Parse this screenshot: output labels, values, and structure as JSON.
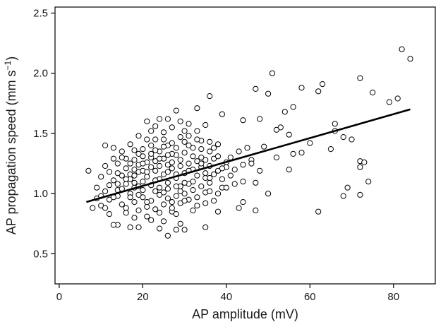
{
  "chart_data": {
    "type": "scatter",
    "title": "",
    "xlabel": "AP amplitude (mV)",
    "ylabel_main": "AP propagation speed (mm s",
    "ylabel_sup": "−1",
    "ylabel_close": ")",
    "xlim": [
      -1,
      90
    ],
    "ylim": [
      0.25,
      2.55
    ],
    "x_ticks": [
      0,
      20,
      40,
      60,
      80
    ],
    "x_tick_labels": [
      "0",
      "20",
      "40",
      "60",
      "80"
    ],
    "y_ticks": [
      0.5,
      1.0,
      1.5,
      2.0,
      2.5
    ],
    "y_tick_labels": [
      "0.5",
      "1.0",
      "1.5",
      "2.0",
      "2.5"
    ],
    "grid": false,
    "legend": "none",
    "trendline": {
      "x": [
        6.5,
        84
      ],
      "y": [
        0.93,
        1.7
      ]
    },
    "series": [
      {
        "points": [
          [
            82,
            2.2
          ],
          [
            84,
            2.12
          ],
          [
            51,
            2.0
          ],
          [
            72,
            1.96
          ],
          [
            63,
            1.91
          ],
          [
            47,
            1.87
          ],
          [
            58,
            1.88
          ],
          [
            62,
            1.85
          ],
          [
            36,
            1.81
          ],
          [
            75,
            1.84
          ],
          [
            81,
            1.79
          ],
          [
            79,
            1.76
          ],
          [
            33,
            1.71
          ],
          [
            50,
            1.83
          ],
          [
            56,
            1.72
          ],
          [
            54,
            1.68
          ],
          [
            28,
            1.69
          ],
          [
            39,
            1.66
          ],
          [
            44,
            1.61
          ],
          [
            48,
            1.62
          ],
          [
            66,
            1.58
          ],
          [
            66,
            1.52
          ],
          [
            53,
            1.55
          ],
          [
            52,
            1.53
          ],
          [
            68,
            1.47
          ],
          [
            70,
            1.45
          ],
          [
            55,
            1.49
          ],
          [
            60,
            1.42
          ],
          [
            49,
            1.39
          ],
          [
            65,
            1.37
          ],
          [
            58,
            1.34
          ],
          [
            56,
            1.33
          ],
          [
            52,
            1.3
          ],
          [
            46,
            1.28
          ],
          [
            44,
            1.24
          ],
          [
            72,
            1.27
          ],
          [
            73,
            1.26
          ],
          [
            72,
            1.22
          ],
          [
            55,
            1.2
          ],
          [
            48,
            1.19
          ],
          [
            42,
            1.2
          ],
          [
            38,
            1.19
          ],
          [
            39,
            1.05
          ],
          [
            40,
            1.05
          ],
          [
            47,
            1.09
          ],
          [
            69,
            1.05
          ],
          [
            72,
            0.99
          ],
          [
            74,
            1.1
          ],
          [
            68,
            0.98
          ],
          [
            50,
            1.0
          ],
          [
            44,
            0.93
          ],
          [
            47,
            0.86
          ],
          [
            43,
            0.88
          ],
          [
            62,
            0.85
          ],
          [
            38,
            0.85
          ],
          [
            35,
            0.72
          ],
          [
            26,
            0.65
          ],
          [
            24,
            0.71
          ],
          [
            28,
            0.7
          ],
          [
            14,
            0.74
          ],
          [
            17,
            0.72
          ],
          [
            19,
            0.72
          ],
          [
            30,
            0.7
          ],
          [
            29,
            0.75
          ],
          [
            22,
            0.78
          ],
          [
            13,
            0.74
          ],
          [
            7,
            1.19
          ],
          [
            9,
            0.96
          ],
          [
            10,
            1.14
          ],
          [
            11,
            1.4
          ],
          [
            12,
            0.83
          ],
          [
            13,
            1.38
          ],
          [
            14,
            1.25
          ],
          [
            15,
            1.35
          ],
          [
            16,
            1.29
          ],
          [
            17,
            1.41
          ],
          [
            18,
            1.2
          ],
          [
            19,
            1.48
          ],
          [
            20,
            1.37
          ],
          [
            21,
            1.6
          ],
          [
            22,
            1.3
          ],
          [
            23,
            1.45
          ],
          [
            24,
            1.62
          ],
          [
            25,
            1.51
          ],
          [
            26,
            1.4
          ],
          [
            27,
            1.55
          ],
          [
            28,
            1.32
          ],
          [
            29,
            1.47
          ],
          [
            30,
            1.43
          ],
          [
            31,
            1.58
          ],
          [
            32,
            1.38
          ],
          [
            33,
            1.52
          ],
          [
            34,
            1.44
          ],
          [
            35,
            1.57
          ],
          [
            36,
            1.35
          ],
          [
            37,
            1.29
          ],
          [
            38,
            1.41
          ],
          [
            15,
            0.91
          ],
          [
            16,
            0.88
          ],
          [
            18,
            0.93
          ],
          [
            19,
            0.86
          ],
          [
            20,
            0.97
          ],
          [
            21,
            0.89
          ],
          [
            22,
            0.94
          ],
          [
            23,
            0.87
          ],
          [
            24,
            0.99
          ],
          [
            25,
            0.91
          ],
          [
            26,
            0.96
          ],
          [
            27,
            0.85
          ],
          [
            28,
            0.98
          ],
          [
            29,
            0.92
          ],
          [
            30,
            1.0
          ],
          [
            31,
            0.95
          ],
          [
            32,
            1.03
          ],
          [
            33,
            0.97
          ],
          [
            34,
            1.06
          ],
          [
            35,
            1.01
          ],
          [
            36,
            1.09
          ],
          [
            11,
            1.02
          ],
          [
            12,
            1.07
          ],
          [
            13,
            1.11
          ],
          [
            14,
            1.03
          ],
          [
            15,
            1.15
          ],
          [
            16,
            1.08
          ],
          [
            17,
            1.12
          ],
          [
            18,
            1.05
          ],
          [
            19,
            1.18
          ],
          [
            20,
            1.1
          ],
          [
            21,
            1.14
          ],
          [
            22,
            1.07
          ],
          [
            23,
            1.19
          ],
          [
            24,
            1.12
          ],
          [
            25,
            1.16
          ],
          [
            26,
            1.09
          ],
          [
            27,
            1.21
          ],
          [
            28,
            1.13
          ],
          [
            29,
            1.23
          ],
          [
            30,
            1.17
          ],
          [
            31,
            1.25
          ],
          [
            32,
            1.2
          ],
          [
            33,
            1.27
          ],
          [
            34,
            1.22
          ],
          [
            35,
            1.28
          ],
          [
            16,
            1.21
          ],
          [
            17,
            1.25
          ],
          [
            18,
            1.28
          ],
          [
            19,
            1.24
          ],
          [
            20,
            1.31
          ],
          [
            21,
            1.26
          ],
          [
            22,
            1.33
          ],
          [
            23,
            1.27
          ],
          [
            24,
            1.35
          ],
          [
            25,
            1.29
          ],
          [
            26,
            1.24
          ],
          [
            27,
            1.33
          ],
          [
            14,
            0.98
          ],
          [
            17,
            1.0
          ],
          [
            20,
            1.03
          ],
          [
            23,
            1.02
          ],
          [
            26,
            1.04
          ],
          [
            29,
            1.06
          ],
          [
            32,
            1.1
          ],
          [
            35,
            1.13
          ],
          [
            12,
            0.95
          ],
          [
            10,
            0.9
          ],
          [
            11,
            1.23
          ],
          [
            18,
            1.36
          ],
          [
            21,
            1.45
          ],
          [
            25,
            1.39
          ],
          [
            30,
            1.34
          ],
          [
            34,
            1.37
          ],
          [
            37,
            1.16
          ],
          [
            39,
            1.12
          ],
          [
            41,
            1.3
          ],
          [
            43,
            1.35
          ],
          [
            45,
            1.38
          ],
          [
            40,
            1.22
          ],
          [
            36,
            1.23
          ],
          [
            31,
            1.08
          ],
          [
            27,
            0.93
          ],
          [
            24,
            0.84
          ],
          [
            21,
            0.81
          ],
          [
            18,
            0.8
          ],
          [
            16,
            0.84
          ],
          [
            28,
            0.83
          ],
          [
            32,
            0.86
          ],
          [
            37,
            0.94
          ],
          [
            33,
            0.9
          ],
          [
            25,
            1.45
          ],
          [
            30,
            1.52
          ],
          [
            22,
            1.52
          ],
          [
            19,
            1.33
          ],
          [
            15,
            1.3
          ],
          [
            24,
            1.23
          ],
          [
            29,
            1.28
          ],
          [
            34,
            1.3
          ],
          [
            36,
            1.43
          ],
          [
            26,
            1.18
          ],
          [
            28,
            1.06
          ],
          [
            31,
            1.19
          ],
          [
            35,
            0.92
          ],
          [
            38,
            1.0
          ],
          [
            20,
            1.19
          ],
          [
            17,
            1.16
          ],
          [
            14,
            1.17
          ],
          [
            13,
            0.97
          ],
          [
            9,
            1.05
          ],
          [
            8,
            0.88
          ],
          [
            12,
            1.18
          ],
          [
            27,
            1.42
          ],
          [
            23,
            1.36
          ],
          [
            19,
            1.06
          ],
          [
            22,
            1.22
          ],
          [
            33,
            1.15
          ],
          [
            36,
            1.02
          ],
          [
            41,
            1.15
          ],
          [
            44,
            1.1
          ],
          [
            46,
            1.25
          ],
          [
            33,
            1.45
          ],
          [
            29,
            1.6
          ],
          [
            26,
            1.62
          ],
          [
            23,
            1.56
          ],
          [
            31,
            1.48
          ],
          [
            28,
            1.38
          ],
          [
            21,
            0.93
          ],
          [
            25,
            0.77
          ],
          [
            27,
            0.88
          ],
          [
            30,
            0.94
          ],
          [
            18,
            1.09
          ],
          [
            16,
            1.12
          ],
          [
            24,
            1.05
          ],
          [
            35,
            1.17
          ],
          [
            38,
            1.31
          ],
          [
            40,
            1.26
          ],
          [
            42,
            1.08
          ],
          [
            20,
            1.25
          ],
          [
            22,
            1.4
          ],
          [
            27,
            1.26
          ],
          [
            32,
            1.31
          ],
          [
            17,
            0.97
          ],
          [
            15,
            1.04
          ],
          [
            13,
            1.29
          ],
          [
            11,
            0.88
          ],
          [
            19,
            0.99
          ],
          [
            23,
            1.11
          ],
          [
            26,
            1.32
          ],
          [
            30,
            1.09
          ],
          [
            34,
            1.25
          ],
          [
            37,
            1.38
          ],
          [
            21,
            1.18
          ],
          [
            25,
            1.01
          ],
          [
            28,
            1.16
          ],
          [
            31,
            1.4
          ],
          [
            36,
            1.13
          ],
          [
            39,
            1.21
          ],
          [
            10,
            0.98
          ],
          [
            14,
            1.08
          ],
          [
            18,
            1.15
          ],
          [
            24,
            1.29
          ],
          [
            29,
            1.02
          ]
        ]
      }
    ]
  }
}
